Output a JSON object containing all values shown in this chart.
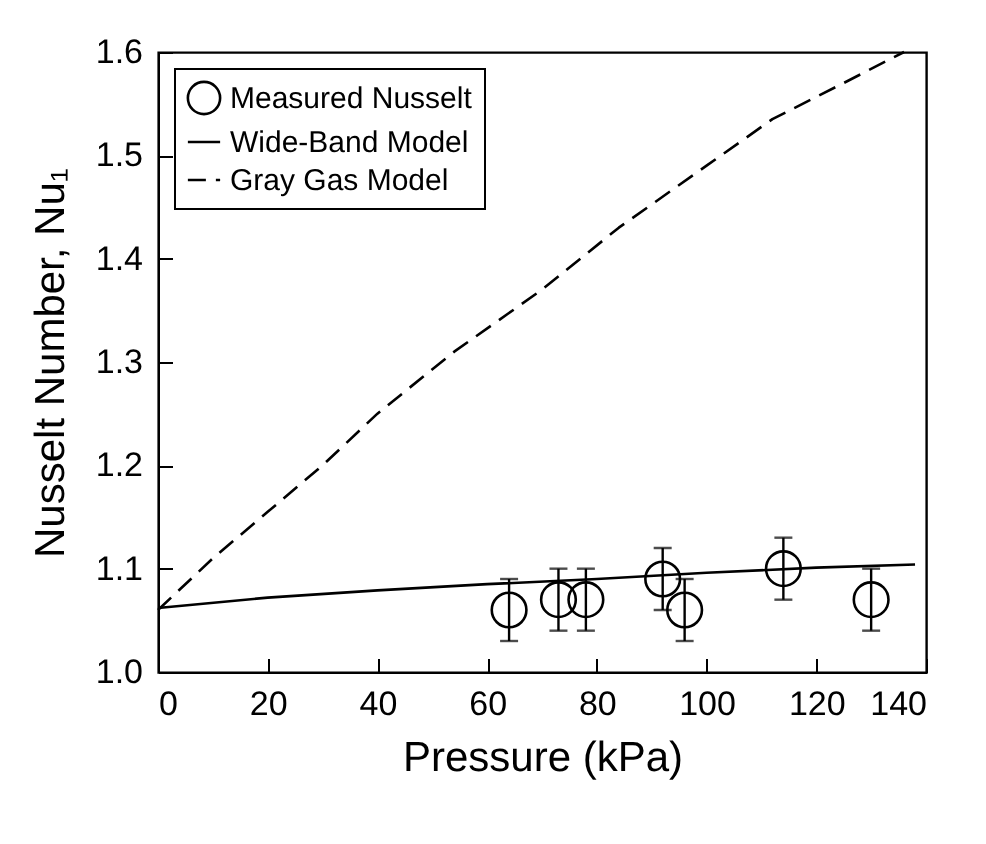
{
  "chart_data": {
    "type": "line",
    "xlabel": "Pressure (kPa)",
    "ylabel": "Nusselt Number, Nu₁",
    "xlim": [
      0,
      140
    ],
    "xticks": [
      0,
      20,
      40,
      60,
      80,
      100,
      120,
      140
    ],
    "ylim": [
      1.0,
      1.6
    ],
    "yticks": [
      {
        "value": 1.0,
        "label": "1.0"
      },
      {
        "value": 1.1,
        "label": "1.1"
      },
      {
        "value": 1.2,
        "label": "1.2"
      },
      {
        "value": 1.3,
        "label": "1.3"
      },
      {
        "value": 1.4,
        "label": "1.4"
      },
      {
        "value": 1.5,
        "label": "1.5"
      },
      {
        "value": 1.6,
        "label": "1.6"
      }
    ],
    "legend": "top left",
    "grid": false,
    "series": [
      {
        "name": "Measured Nusselt",
        "type": "scatter",
        "marker": "circle",
        "color": "#000000",
        "x": [
          64,
          73,
          78,
          92,
          96,
          114,
          130
        ],
        "values": [
          1.06,
          1.07,
          1.07,
          1.09,
          1.06,
          1.1,
          1.07
        ],
        "errors": [
          0.03,
          0.03,
          0.03,
          0.03,
          0.03,
          0.03,
          0.03
        ]
      },
      {
        "name": "Wide-Band Model",
        "line_style": "solid",
        "color": "#000000",
        "x": [
          0,
          20,
          40,
          60,
          80,
          100,
          120,
          138
        ],
        "values": [
          1.062,
          1.072,
          1.079,
          1.085,
          1.09,
          1.096,
          1.101,
          1.104
        ]
      },
      {
        "name": "Gray Gas Model",
        "line_style": "dashed",
        "color": "#000000",
        "x": [
          0,
          10,
          20,
          30,
          40,
          54,
          70,
          84,
          100,
          112,
          125,
          136
        ],
        "values": [
          1.06,
          1.11,
          1.155,
          1.2,
          1.25,
          1.31,
          1.37,
          1.43,
          1.49,
          1.535,
          1.57,
          1.6
        ]
      }
    ]
  }
}
